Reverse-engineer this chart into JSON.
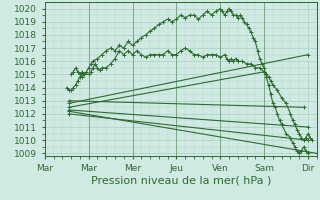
{
  "title": "",
  "xlabel": "Pression niveau de la mer( hPa )",
  "ylabel": "",
  "background_color": "#d0eae3",
  "plot_background": "#d0eae3",
  "grid_color": "#b0d4c8",
  "line_color": "#2d6b2d",
  "xlim": [
    0,
    6.2
  ],
  "ylim": [
    1008.8,
    1020.5
  ],
  "yticks": [
    1009,
    1010,
    1011,
    1012,
    1013,
    1014,
    1015,
    1016,
    1017,
    1018,
    1019,
    1020
  ],
  "xtick_labels": [
    "Mar",
    "Mar",
    "Mer",
    "Jeu",
    "Ven",
    "Sam",
    "Dir"
  ],
  "xtick_positions": [
    0.0,
    1.0,
    2.0,
    3.0,
    4.0,
    5.0,
    6.0
  ],
  "vlines": [
    1.0,
    2.0,
    3.0,
    4.0,
    5.0
  ],
  "lines": [
    {
      "x": [
        0.6,
        0.65,
        0.7,
        0.75,
        0.8,
        0.85,
        0.9,
        1.0,
        1.05,
        1.1,
        1.15,
        1.2,
        1.25,
        1.3,
        1.4,
        1.5,
        1.6,
        1.7,
        1.8,
        1.9,
        2.0,
        2.1,
        2.2,
        2.3,
        2.4,
        2.5,
        2.6,
        2.7,
        2.8,
        2.9,
        3.0,
        3.1,
        3.2,
        3.3,
        3.4,
        3.5,
        3.6,
        3.7,
        3.8,
        3.9,
        4.0,
        4.1,
        4.15,
        4.2,
        4.25,
        4.3,
        4.35,
        4.4,
        4.5,
        4.6,
        4.7,
        4.8,
        4.9,
        5.0,
        5.05,
        5.1,
        5.15,
        5.2,
        5.3,
        5.4,
        5.5,
        5.6,
        5.65,
        5.7,
        5.75,
        5.8,
        5.85,
        5.9,
        5.95,
        6.0,
        6.05,
        6.1
      ],
      "y": [
        1015.0,
        1015.2,
        1015.5,
        1015.2,
        1015.0,
        1014.8,
        1015.0,
        1015.0,
        1015.2,
        1015.5,
        1015.8,
        1015.5,
        1015.3,
        1015.5,
        1015.5,
        1015.8,
        1016.2,
        1016.8,
        1016.5,
        1016.8,
        1016.5,
        1016.8,
        1016.5,
        1016.3,
        1016.5,
        1016.5,
        1016.5,
        1016.5,
        1016.8,
        1016.5,
        1016.5,
        1016.8,
        1017.0,
        1016.8,
        1016.5,
        1016.5,
        1016.3,
        1016.5,
        1016.5,
        1016.5,
        1016.3,
        1016.5,
        1016.2,
        1016.0,
        1016.2,
        1016.0,
        1016.2,
        1016.0,
        1016.0,
        1015.8,
        1015.8,
        1015.5,
        1015.5,
        1015.2,
        1015.0,
        1014.8,
        1014.5,
        1014.2,
        1013.8,
        1013.2,
        1012.8,
        1012.0,
        1011.5,
        1011.2,
        1010.8,
        1010.5,
        1010.2,
        1010.0,
        1010.2,
        1010.5,
        1010.2,
        1010.0
      ],
      "marker": "+"
    },
    {
      "x": [
        0.5,
        0.55,
        0.6,
        0.65,
        0.7,
        0.75,
        0.8,
        0.85,
        0.9,
        0.95,
        1.0,
        1.05,
        1.1,
        1.2,
        1.3,
        1.4,
        1.5,
        1.6,
        1.7,
        1.8,
        1.9,
        2.0,
        2.1,
        2.2,
        2.3,
        2.4,
        2.5,
        2.6,
        2.7,
        2.8,
        2.9,
        3.0,
        3.1,
        3.2,
        3.3,
        3.4,
        3.5,
        3.6,
        3.7,
        3.8,
        3.9,
        4.0,
        4.05,
        4.1,
        4.15,
        4.2,
        4.25,
        4.3,
        4.35,
        4.4,
        4.45,
        4.5,
        4.55,
        4.6,
        4.65,
        4.7,
        4.75,
        4.8,
        4.85,
        4.9,
        4.95,
        5.0,
        5.05,
        5.1,
        5.15,
        5.2,
        5.25,
        5.3,
        5.35,
        5.4,
        5.5,
        5.6,
        5.65,
        5.7,
        5.75,
        5.8,
        5.85,
        5.9,
        5.95,
        6.0
      ],
      "y": [
        1014.0,
        1013.8,
        1013.8,
        1014.0,
        1014.2,
        1014.5,
        1014.8,
        1015.2,
        1015.0,
        1015.2,
        1015.5,
        1015.8,
        1016.0,
        1016.2,
        1016.5,
        1016.8,
        1017.0,
        1016.8,
        1017.2,
        1017.0,
        1017.5,
        1017.2,
        1017.5,
        1017.8,
        1018.0,
        1018.3,
        1018.5,
        1018.8,
        1019.0,
        1019.2,
        1019.0,
        1019.2,
        1019.5,
        1019.3,
        1019.5,
        1019.5,
        1019.2,
        1019.5,
        1019.8,
        1019.5,
        1019.8,
        1020.0,
        1019.8,
        1019.5,
        1019.8,
        1020.0,
        1019.8,
        1019.5,
        1019.5,
        1019.3,
        1019.5,
        1019.3,
        1019.0,
        1018.8,
        1018.5,
        1018.2,
        1017.8,
        1017.5,
        1016.8,
        1016.2,
        1015.8,
        1015.5,
        1014.8,
        1014.2,
        1013.5,
        1012.8,
        1012.5,
        1012.0,
        1011.5,
        1011.2,
        1010.5,
        1010.2,
        1009.8,
        1009.5,
        1009.2,
        1009.0,
        1009.2,
        1009.5,
        1009.2,
        1009.0
      ],
      "marker": "+"
    },
    {
      "x": [
        0.55,
        6.0
      ],
      "y": [
        1012.8,
        1016.5
      ],
      "marker": "+"
    },
    {
      "x": [
        0.55,
        5.0
      ],
      "y": [
        1012.5,
        1015.2
      ],
      "marker": "+"
    },
    {
      "x": [
        0.55,
        6.0
      ],
      "y": [
        1012.3,
        1011.0
      ],
      "marker": "+"
    },
    {
      "x": [
        0.55,
        6.0
      ],
      "y": [
        1012.0,
        1010.0
      ],
      "marker": "+"
    },
    {
      "x": [
        0.55,
        6.2
      ],
      "y": [
        1012.2,
        1009.0
      ],
      "marker": "+"
    },
    {
      "x": [
        0.55,
        5.9
      ],
      "y": [
        1013.0,
        1012.5
      ],
      "marker": "+"
    }
  ],
  "xlabel_fontsize": 8,
  "tick_fontsize": 6.5,
  "line_width": 0.8,
  "marker_size": 2.5
}
